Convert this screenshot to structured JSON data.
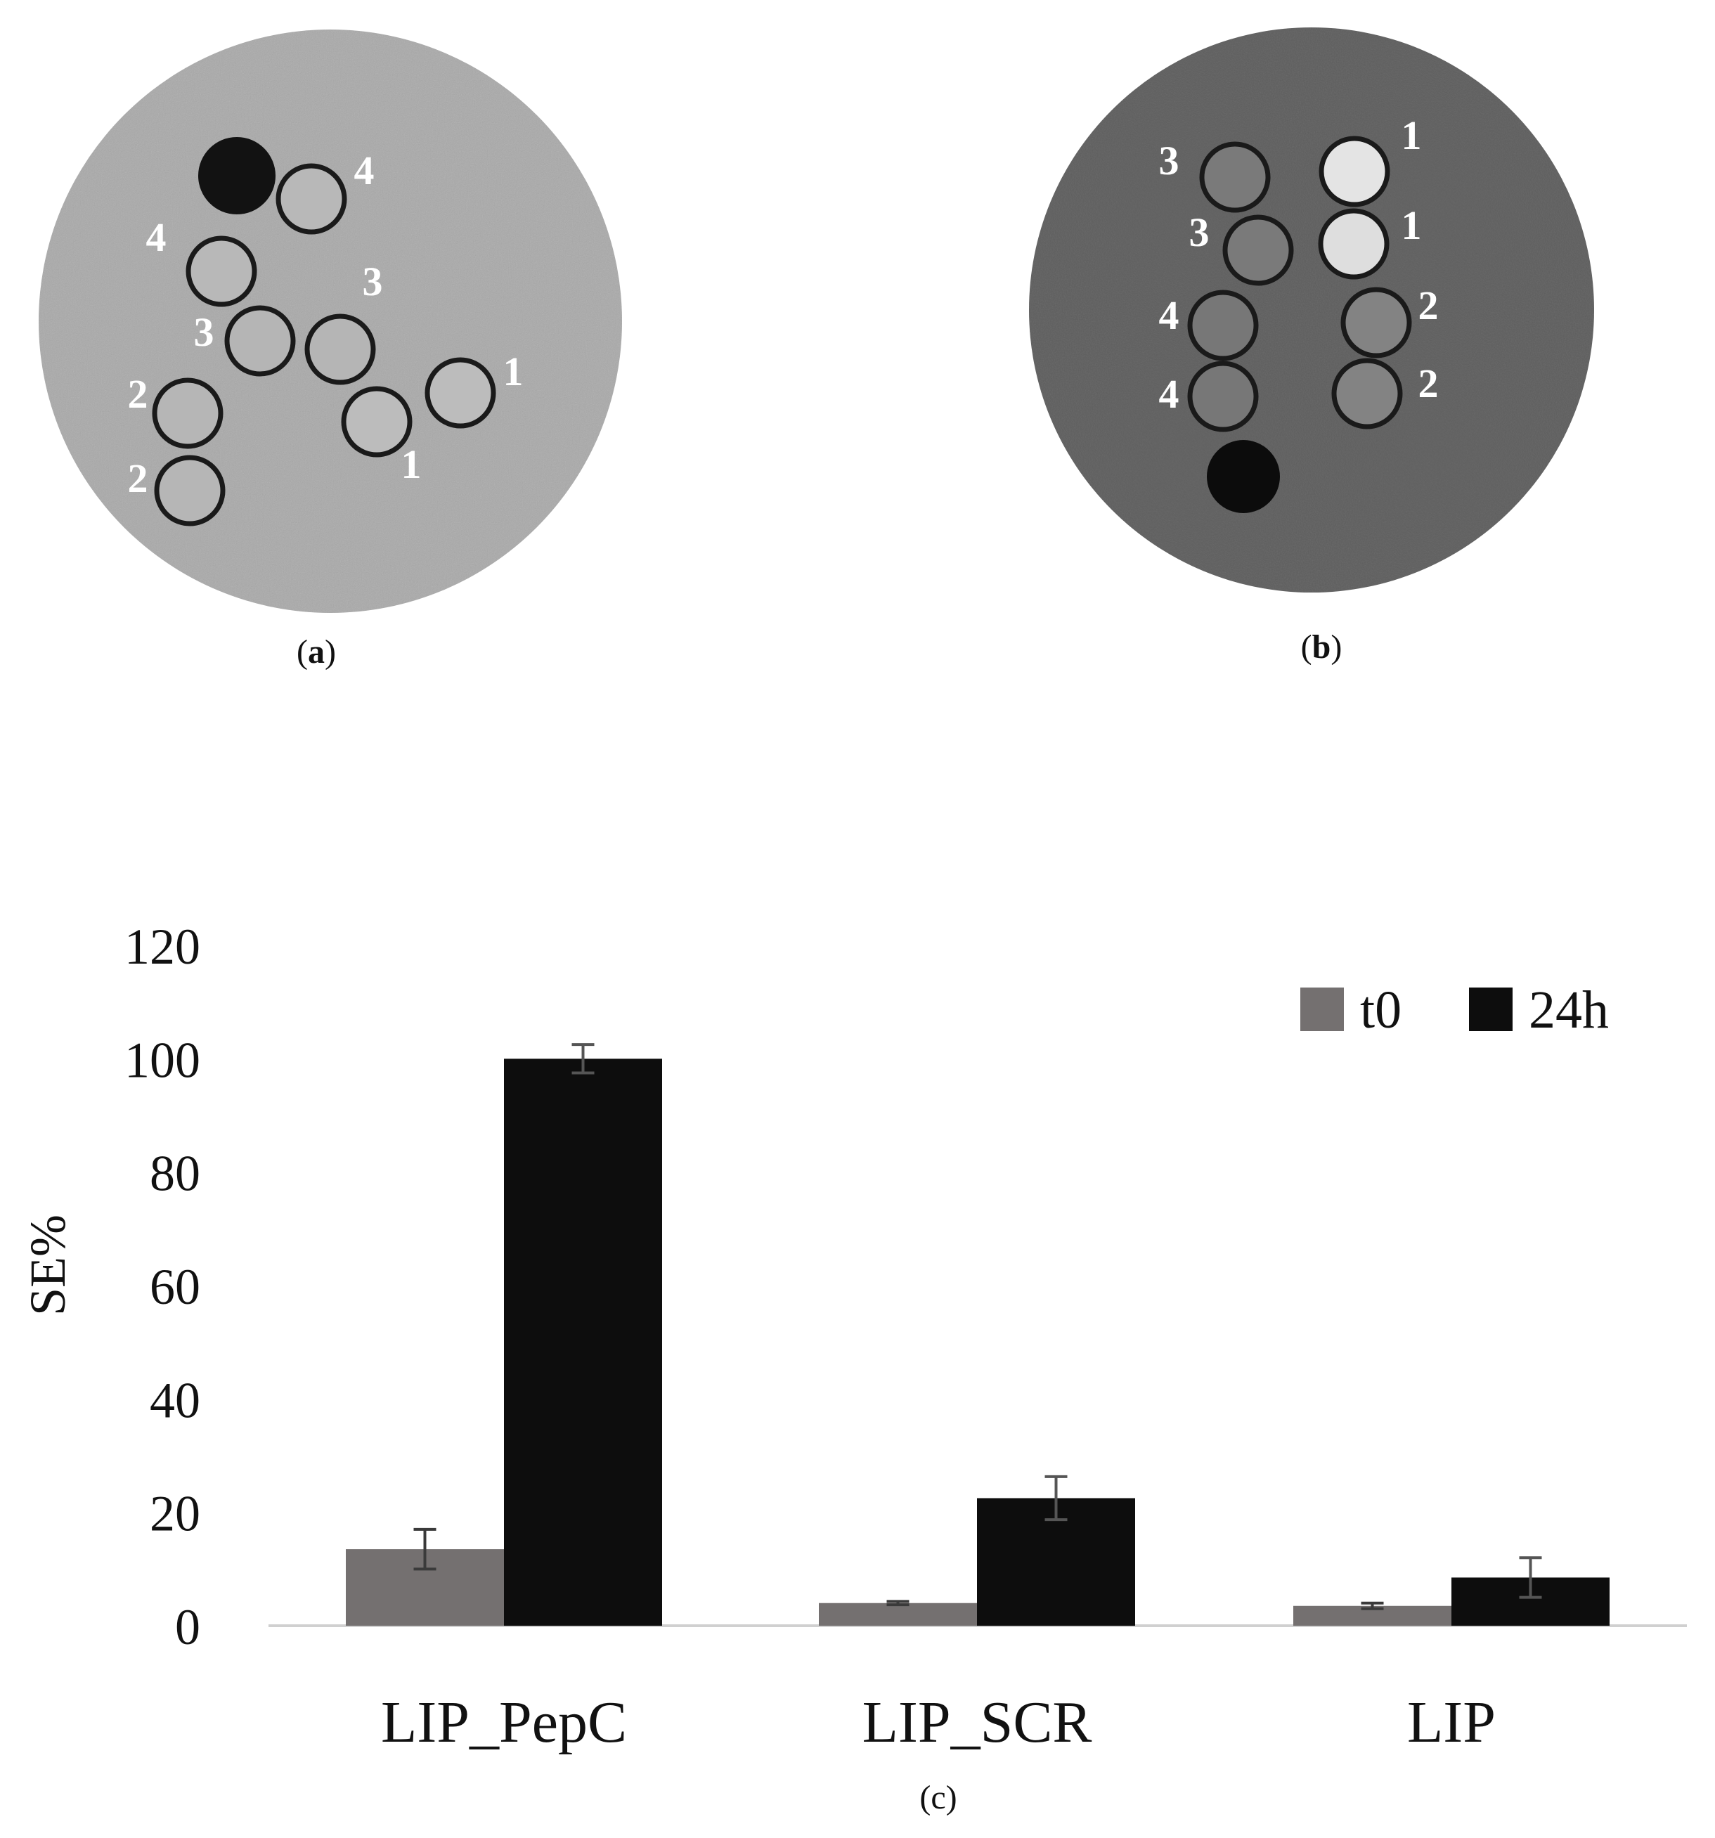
{
  "panels": {
    "a": {
      "caption_letter": "a",
      "background": "#a9a9a9",
      "marker_color": "#121212",
      "wells": [
        {
          "label": "4",
          "fill": "#b8b8b8"
        },
        {
          "label": "4",
          "fill": "#b8b8b8"
        },
        {
          "label": "3",
          "fill": "#b5b5b5"
        },
        {
          "label": "3",
          "fill": "#b5b5b5"
        },
        {
          "label": "1",
          "fill": "#bcbcbc"
        },
        {
          "label": "1",
          "fill": "#bcbcbc"
        },
        {
          "label": "2",
          "fill": "#b6b6b6"
        },
        {
          "label": "2",
          "fill": "#b6b6b6"
        }
      ]
    },
    "b": {
      "caption_letter": "b",
      "background": "#5e5e5e",
      "marker_color": "#0c0c0c",
      "wells": [
        {
          "label": "3",
          "fill": "#7a7a7a"
        },
        {
          "label": "1",
          "fill": "#e4e4e4"
        },
        {
          "label": "3",
          "fill": "#7a7a7a"
        },
        {
          "label": "1",
          "fill": "#dedede"
        },
        {
          "label": "4",
          "fill": "#777777"
        },
        {
          "label": "2",
          "fill": "#838383"
        },
        {
          "label": "4",
          "fill": "#777777"
        },
        {
          "label": "2",
          "fill": "#838383"
        }
      ]
    },
    "c": {
      "caption_letter": "c"
    }
  },
  "chart_data": {
    "type": "bar",
    "categories": [
      "LIP_PepC",
      "LIP_SCR",
      "LIP"
    ],
    "series": [
      {
        "name": "t0",
        "color": "#747070",
        "values": [
          13.5,
          4,
          3.5
        ],
        "errors": [
          3.5,
          0.3,
          0.5
        ]
      },
      {
        "name": "24h",
        "color": "#0d0d0d",
        "values": [
          100,
          22.5,
          8.5
        ],
        "errors": [
          2.5,
          3.8,
          3.5
        ]
      }
    ],
    "ylabel": "SE%",
    "ylim": [
      0,
      120
    ],
    "yticks": [
      0,
      20,
      40,
      60,
      80,
      100,
      120
    ],
    "legend_position": "top-right",
    "grid": false
  }
}
